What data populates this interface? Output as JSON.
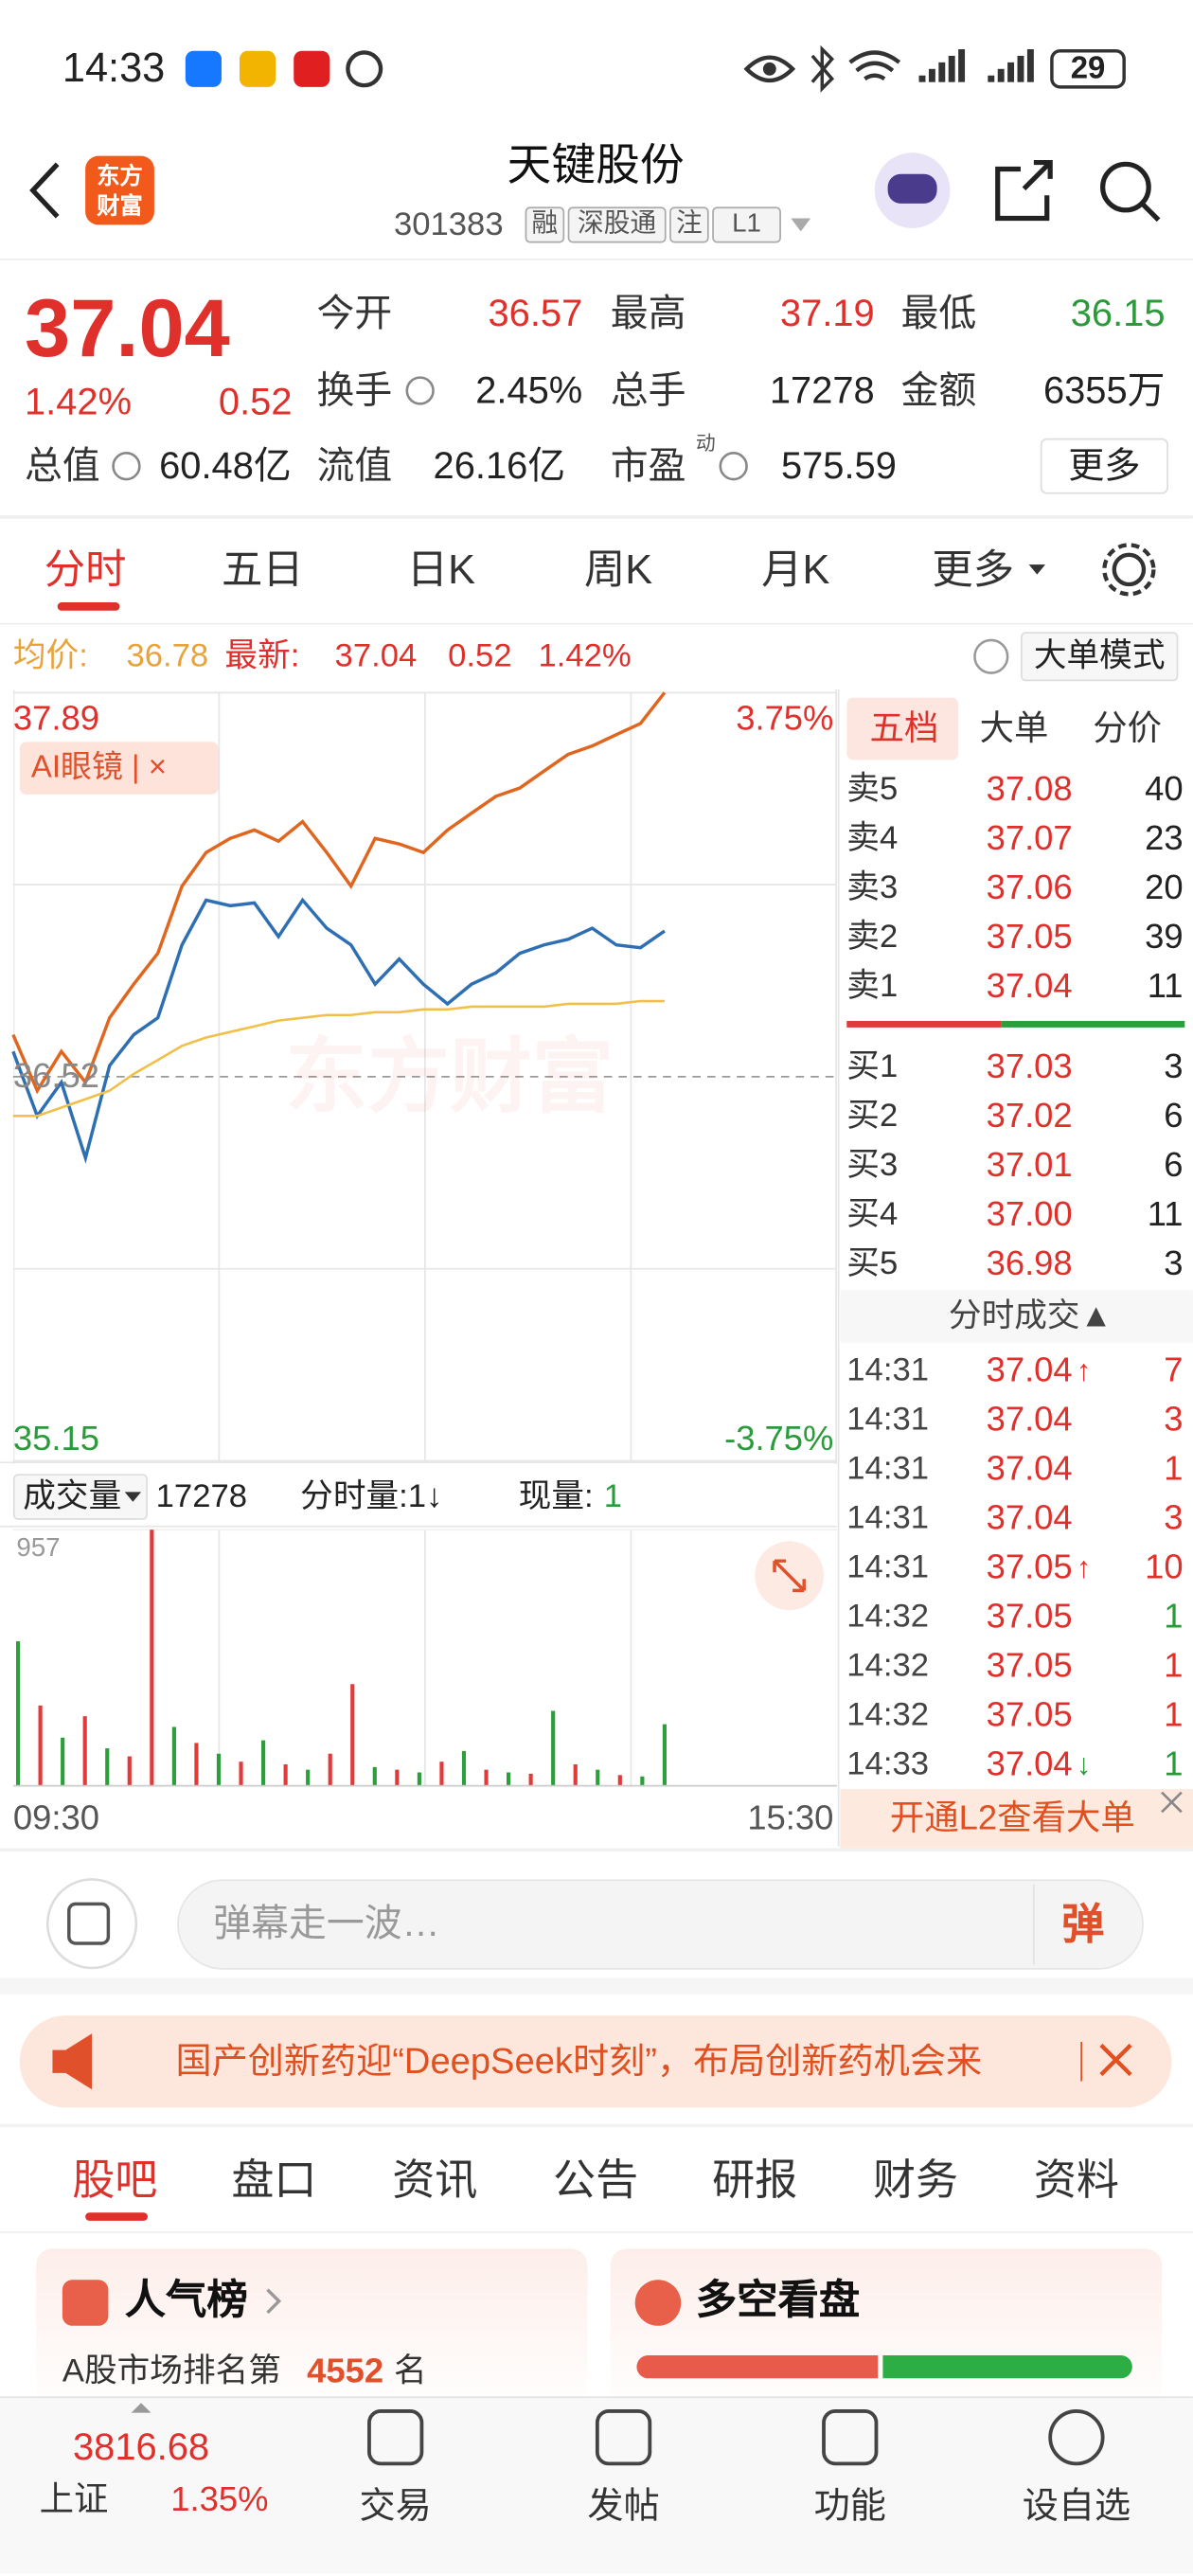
{
  "status_bar": {
    "time": "14:33",
    "battery": "29"
  },
  "header": {
    "logo": [
      "东方",
      "财富"
    ],
    "title": "天键股份",
    "code": "301383",
    "tags": [
      "融",
      "深股通",
      "注",
      "L1"
    ]
  },
  "quote": {
    "price": "37.04",
    "change_pct": "1.42%",
    "change": "0.52",
    "fields": [
      {
        "label": "今开",
        "value": "36.57"
      },
      {
        "label": "最高",
        "value": "37.19"
      },
      {
        "label": "最低",
        "value": "36.15"
      },
      {
        "label": "换手",
        "value": "2.45%"
      },
      {
        "label": "总手",
        "value": "17278"
      },
      {
        "label": "金额",
        "value": "6355万"
      },
      {
        "label": "总值",
        "value": "60.48亿"
      },
      {
        "label": "流值",
        "value": "26.16亿"
      },
      {
        "label": "市盈",
        "sup": "动",
        "value": "575.59"
      }
    ],
    "more": "更多"
  },
  "tabs": [
    "分时",
    "五日",
    "日K",
    "周K",
    "月K",
    "更多"
  ],
  "info_bar": {
    "avg_label": "均价:",
    "avg": "36.78",
    "latest_label": "最新:",
    "latest": "37.04",
    "change": "0.52",
    "change_pct": "1.42%",
    "mode": "大单模式"
  },
  "chart_data": [
    {
      "type": "line",
      "tag": "AI眼镜 | ×",
      "watermark": "东方财富",
      "ylim": [
        35.15,
        37.89
      ],
      "yticks": [
        35.15,
        36.52,
        37.89
      ],
      "y2lim": [
        -3.75,
        3.75
      ],
      "y2ticks": [
        {
          "value": -3.75,
          "label": "-3.75%"
        },
        {
          "value": 3.75,
          "label": "3.75%"
        }
      ],
      "x_labels": [
        "09:30",
        "15:30"
      ],
      "series": [
        {
          "color": "#e0661f",
          "values": [
            36.67,
            36.47,
            36.61,
            36.5,
            36.73,
            36.85,
            36.96,
            37.2,
            37.32,
            37.37,
            37.4,
            37.36,
            37.43,
            37.32,
            37.2,
            37.37,
            37.35,
            37.32,
            37.4,
            37.46,
            37.52,
            37.55,
            37.61,
            37.67,
            37.7,
            37.74,
            37.78,
            37.89
          ]
        },
        {
          "color": "#2e6fb3",
          "values": [
            36.61,
            36.38,
            36.5,
            36.23,
            36.56,
            36.67,
            36.73,
            36.99,
            37.15,
            37.13,
            37.14,
            37.02,
            37.15,
            37.05,
            36.99,
            36.85,
            36.94,
            36.85,
            36.78,
            36.85,
            36.89,
            36.96,
            36.99,
            37.01,
            37.05,
            36.99,
            36.98,
            37.04
          ]
        },
        {
          "color": "#f0c04a",
          "values": [
            36.38,
            36.38,
            36.41,
            36.44,
            36.47,
            36.53,
            36.58,
            36.63,
            36.66,
            36.68,
            36.7,
            36.72,
            36.73,
            36.74,
            36.74,
            36.75,
            36.75,
            36.76,
            36.76,
            36.77,
            36.77,
            36.77,
            36.77,
            36.78,
            36.78,
            36.78,
            36.79,
            36.79
          ]
        }
      ]
    },
    {
      "type": "bar",
      "title": "成交量",
      "total": "17278",
      "tick_volume": "分时量:1↓",
      "current_label": "现量:",
      "current": "1",
      "ylim": [
        0,
        957
      ],
      "yticks": [
        957
      ],
      "values": [
        540,
        300,
        180,
        260,
        140,
        110,
        957,
        220,
        160,
        120,
        90,
        170,
        80,
        60,
        120,
        380,
        70,
        60,
        50,
        90,
        130,
        60,
        50,
        45,
        280,
        80,
        60,
        40,
        35,
        230
      ],
      "colors": [
        "#2c9f3c",
        "#e03a3a",
        "#2c9f3c",
        "#e03a3a",
        "#2c9f3c",
        "#e03a3a",
        "#e03a3a",
        "#2c9f3c",
        "#e03a3a",
        "#2c9f3c",
        "#e03a3a",
        "#2c9f3c",
        "#e03a3a",
        "#2c9f3c",
        "#e03a3a",
        "#e03a3a",
        "#2c9f3c",
        "#e03a3a",
        "#2c9f3c",
        "#e03a3a",
        "#2c9f3c",
        "#e03a3a",
        "#2c9f3c",
        "#e03a3a",
        "#2c9f3c",
        "#e03a3a",
        "#2c9f3c",
        "#e03a3a",
        "#2c9f3c",
        "#2c9f3c"
      ]
    }
  ],
  "order_book": {
    "tabs": [
      "五档",
      "大单",
      "分价"
    ],
    "asks": [
      {
        "label": "卖5",
        "price": "37.08",
        "volume": "40"
      },
      {
        "label": "卖4",
        "price": "37.07",
        "volume": "23"
      },
      {
        "label": "卖3",
        "price": "37.06",
        "volume": "20"
      },
      {
        "label": "卖2",
        "price": "37.05",
        "volume": "39"
      },
      {
        "label": "卖1",
        "price": "37.04",
        "volume": "11"
      }
    ],
    "bids": [
      {
        "label": "买1",
        "price": "37.03",
        "volume": "3"
      },
      {
        "label": "买2",
        "price": "37.02",
        "volume": "6"
      },
      {
        "label": "买3",
        "price": "37.01",
        "volume": "6"
      },
      {
        "label": "买4",
        "price": "37.00",
        "volume": "11"
      },
      {
        "label": "买5",
        "price": "36.98",
        "volume": "3"
      }
    ],
    "trades_title": "分时成交▲",
    "trades": [
      {
        "time": "14:31",
        "price": "37.04",
        "dir": "↑",
        "volume": "7",
        "color": "#e0302b"
      },
      {
        "time": "14:31",
        "price": "37.04",
        "volume": "3",
        "color": "#e0302b"
      },
      {
        "time": "14:31",
        "price": "37.04",
        "volume": "1",
        "color": "#e0302b"
      },
      {
        "time": "14:31",
        "price": "37.04",
        "volume": "3",
        "color": "#e0302b"
      },
      {
        "time": "14:31",
        "price": "37.05",
        "dir": "↑",
        "volume": "10",
        "color": "#e0302b"
      },
      {
        "time": "14:32",
        "price": "37.05",
        "volume": "1",
        "color": "#2a9a3a"
      },
      {
        "time": "14:32",
        "price": "37.05",
        "volume": "1",
        "color": "#e0302b"
      },
      {
        "time": "14:32",
        "price": "37.05",
        "volume": "1",
        "color": "#e0302b"
      },
      {
        "time": "14:33",
        "price": "37.04",
        "dir": "↓",
        "volume": "1",
        "color": "#2a9a3a"
      }
    ],
    "l2": "开通L2查看大单"
  },
  "comment_bar": {
    "placeholder": "弹幕走一波…",
    "button": "弹"
  },
  "banner": "国产创新药迎“DeepSeek时刻”，布局创新药机会来",
  "section_tabs": [
    "股吧",
    "盘口",
    "资讯",
    "公告",
    "研报",
    "财务",
    "资料"
  ],
  "cards": {
    "popularity": {
      "title": "人气榜",
      "rank_prefix": "A股市场排名第",
      "rank": "4552",
      "rank_suffix": "名"
    },
    "sentiment": {
      "title": "多空看盘"
    }
  },
  "bottom_nav": {
    "index_value": "3816.68",
    "index_name": "上证",
    "index_change": "1.35%",
    "items": [
      "交易",
      "发帖",
      "功能",
      "设自选"
    ]
  }
}
